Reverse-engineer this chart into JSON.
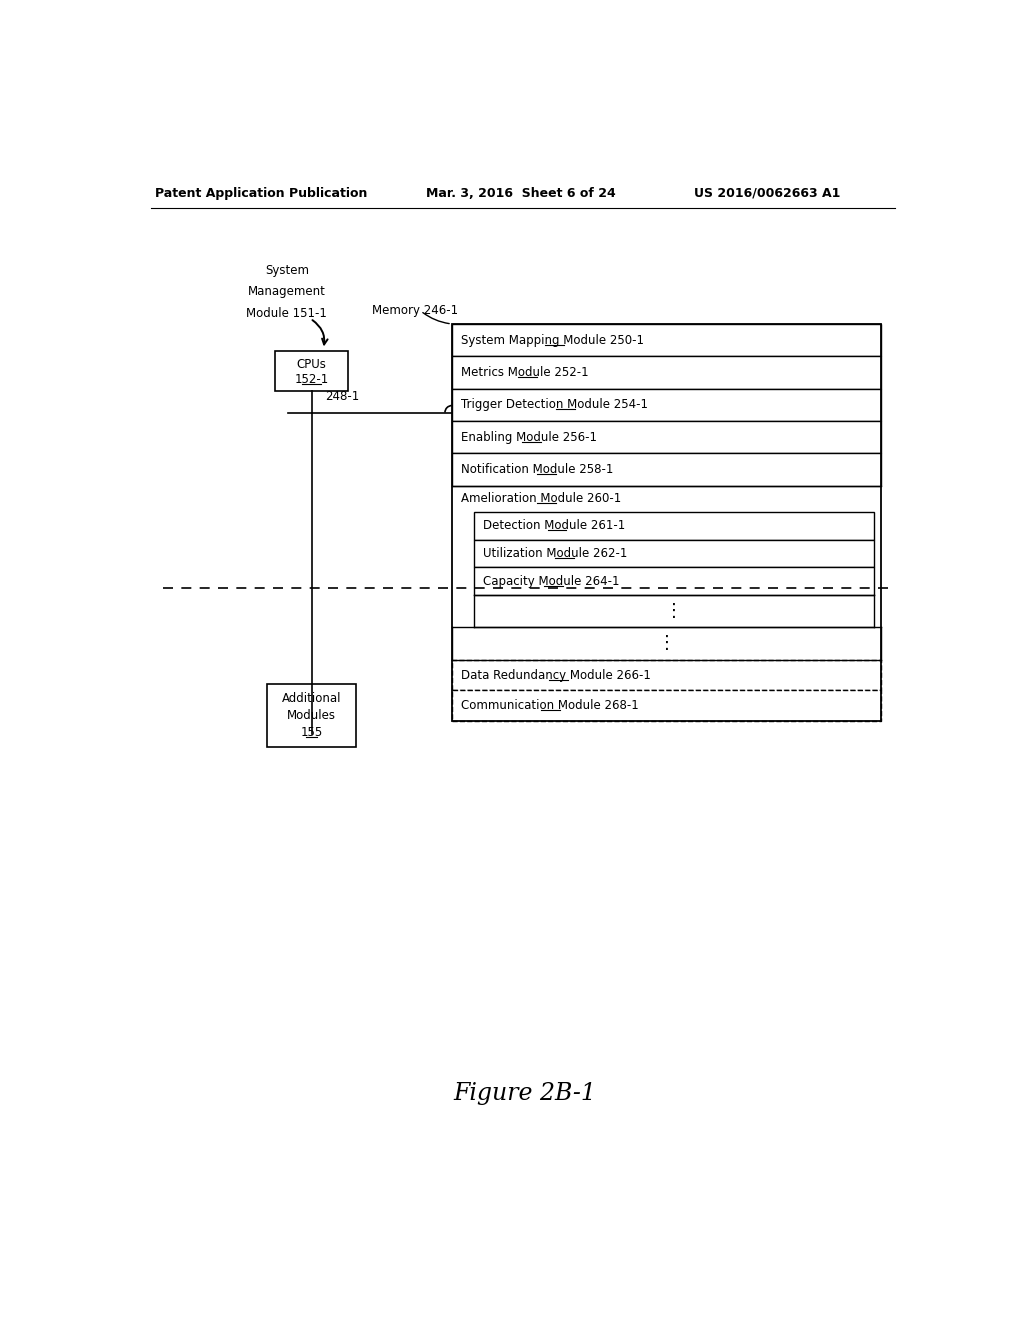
{
  "header_left": "Patent Application Publication",
  "header_mid": "Mar. 3, 2016  Sheet 6 of 24",
  "header_right": "US 2016/0062663 A1",
  "figure_label": "Figure 2B-1",
  "sys_mgmt_lines": [
    "System",
    "Management",
    "Module 151-1"
  ],
  "cpu_line1": "CPUs",
  "cpu_line2": "152-1",
  "memory_label": "Memory 246-1",
  "bus_label": "248-1",
  "modules": [
    "System Mapping Module 250-1",
    "Metrics Module 252-1",
    "Trigger Detection Module 254-1",
    "Enabling Module 256-1",
    "Notification Module 258-1",
    "Amelioration Module 260-1"
  ],
  "sub_modules": [
    "Detection Module 261-1",
    "Utilization Module 262-1",
    "Capacity Module 264-1"
  ],
  "dashed_modules": [
    "Data Redundancy Module 266-1",
    "Communication Module 268-1"
  ],
  "additional_lines": [
    "Additional",
    "Modules",
    "155"
  ]
}
